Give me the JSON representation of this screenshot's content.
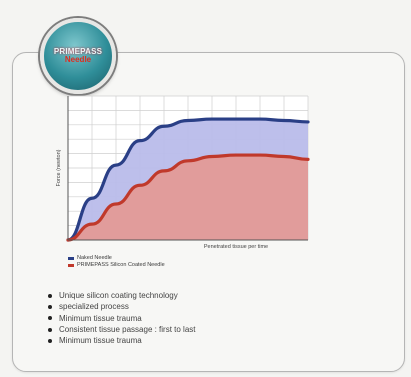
{
  "badge": {
    "brand": "PRIMEPASS",
    "sub": "Needle"
  },
  "chart_data": {
    "type": "area",
    "title": "",
    "xlabel": "Penetrated tissue per time",
    "ylabel": "Force (newton)",
    "x": [
      0,
      1,
      2,
      3,
      4,
      5,
      6,
      7,
      8,
      9,
      10
    ],
    "series": [
      {
        "name": "Naked Needle",
        "color": "#2a3f86",
        "fill": "#b9bcea",
        "values": [
          0,
          2.9,
          5.2,
          6.9,
          7.9,
          8.3,
          8.4,
          8.4,
          8.4,
          8.3,
          8.2
        ]
      },
      {
        "name": "PRIMEPASS Silicon Coated Needle",
        "color": "#c0392b",
        "fill": "#e39a97",
        "values": [
          0,
          1.1,
          2.5,
          3.8,
          4.8,
          5.5,
          5.8,
          5.9,
          5.9,
          5.8,
          5.6
        ]
      }
    ],
    "xlim": [
      0,
      10
    ],
    "ylim": [
      0,
      10
    ],
    "grid": true
  },
  "bullets": [
    "Unique silicon coating technology",
    "specialized process",
    "Minimum tissue trauma",
    "Consistent tissue passage : first to last",
    "Minimum tissue trauma"
  ]
}
